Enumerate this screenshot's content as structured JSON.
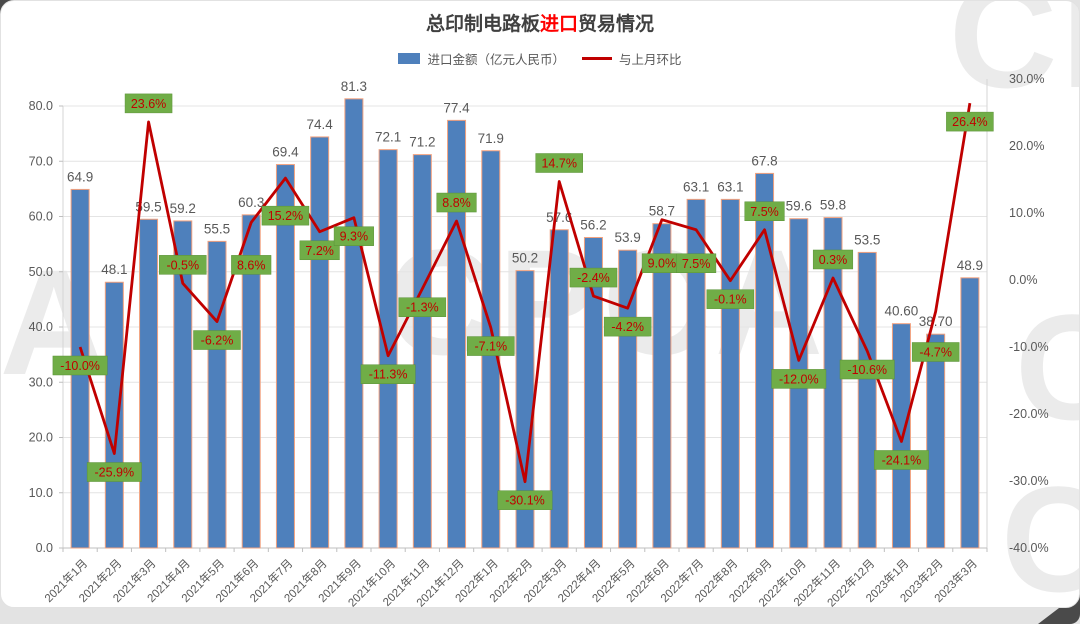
{
  "window": {
    "card_bg": "#ffffff",
    "page_bg": "#e3e3e3"
  },
  "title": {
    "prefix": "总印制电路板",
    "highlight": "进口",
    "suffix": "贸易情况",
    "highlight_color": "#ff0000"
  },
  "legend": {
    "bar_label": "进口金额（亿元人民币）",
    "line_label": "与上月环比"
  },
  "watermark": {
    "text": "CPCA"
  },
  "chart_data": {
    "type": "bar",
    "title": "总印制电路板进口贸易情况",
    "legend_position": "top",
    "grid": true,
    "categories": [
      "2021年1月",
      "2021年2月",
      "2021年3月",
      "2021年4月",
      "2021年5月",
      "2021年6月",
      "2021年7月",
      "2021年8月",
      "2021年9月",
      "2021年10月",
      "2021年11月",
      "2021年12月",
      "2022年1月",
      "2022年2月",
      "2022年3月",
      "2022年4月",
      "2022年5月",
      "2022年6月",
      "2022年7月",
      "2022年8月",
      "2022年9月",
      "2022年10月",
      "2022年11月",
      "2022年12月",
      "2023年1月",
      "2023年2月",
      "2023年3月"
    ],
    "series": [
      {
        "name": "进口金额（亿元人民币）",
        "type": "bar",
        "axis": "left",
        "color": "#4e80bc",
        "border_color": "#f2a17e",
        "values": [
          64.9,
          48.1,
          59.5,
          59.2,
          55.5,
          60.3,
          69.4,
          74.4,
          81.3,
          72.1,
          71.2,
          77.4,
          71.9,
          50.2,
          57.6,
          56.2,
          53.9,
          58.7,
          63.1,
          63.1,
          67.8,
          59.6,
          59.8,
          53.5,
          40.6,
          38.7,
          48.9
        ],
        "value_labels": [
          "64.9",
          "48.1",
          "59.5",
          "59.2",
          "55.5",
          "60.3",
          "69.4",
          "74.4",
          "81.3",
          "72.1",
          "71.2",
          "77.4",
          "71.9",
          "50.2",
          "57.6",
          "56.2",
          "53.9",
          "58.7",
          "63.1",
          "63.1",
          "67.8",
          "59.6",
          "59.8",
          "53.5",
          "40.60",
          "38.70",
          "48.9"
        ],
        "label_color": "#595959"
      },
      {
        "name": "与上月环比",
        "type": "line",
        "axis": "right",
        "color": "#c00000",
        "values": [
          -10.0,
          -25.9,
          23.6,
          -0.5,
          -6.2,
          8.6,
          15.2,
          7.2,
          9.3,
          -11.3,
          -1.3,
          8.8,
          -7.1,
          -30.1,
          14.7,
          -2.4,
          -4.2,
          9.0,
          7.5,
          -0.1,
          7.5,
          -12.0,
          0.3,
          -10.6,
          -24.1,
          -4.7,
          26.4
        ],
        "point_labels": [
          "-10.0%",
          "-25.9%",
          "23.6%",
          "-0.5%",
          "-6.2%",
          "8.6%",
          "15.2%",
          "7.2%",
          "9.3%",
          "-11.3%",
          "-1.3%",
          "8.8%",
          "-7.1%",
          "-30.1%",
          "14.7%",
          "-2.4%",
          "-4.2%",
          "9.0%",
          "7.5%",
          "-0.1%",
          "7.5%",
          "-12.0%",
          "0.3%",
          "-10.6%",
          "-24.1%",
          "-4.7%",
          "26.4%"
        ],
        "label_bg": "#70ad47",
        "label_text_color": "#c00000"
      }
    ],
    "left_axis": {
      "min": 0,
      "max": 80,
      "step": 10,
      "tick_labels": [
        "0.0",
        "10.0",
        "20.0",
        "30.0",
        "40.0",
        "50.0",
        "60.0",
        "70.0",
        "80.0"
      ]
    },
    "right_axis": {
      "min": -40,
      "max": 30,
      "step": 10,
      "tick_labels": [
        "30.0%",
        "20.0%",
        "10.0%",
        "0.0%",
        "-10.0%",
        "-20.0%",
        "-30.0%",
        "-40.0%"
      ]
    },
    "axis_text_color": "#595959",
    "gridline_color": "#e4e4e4"
  }
}
